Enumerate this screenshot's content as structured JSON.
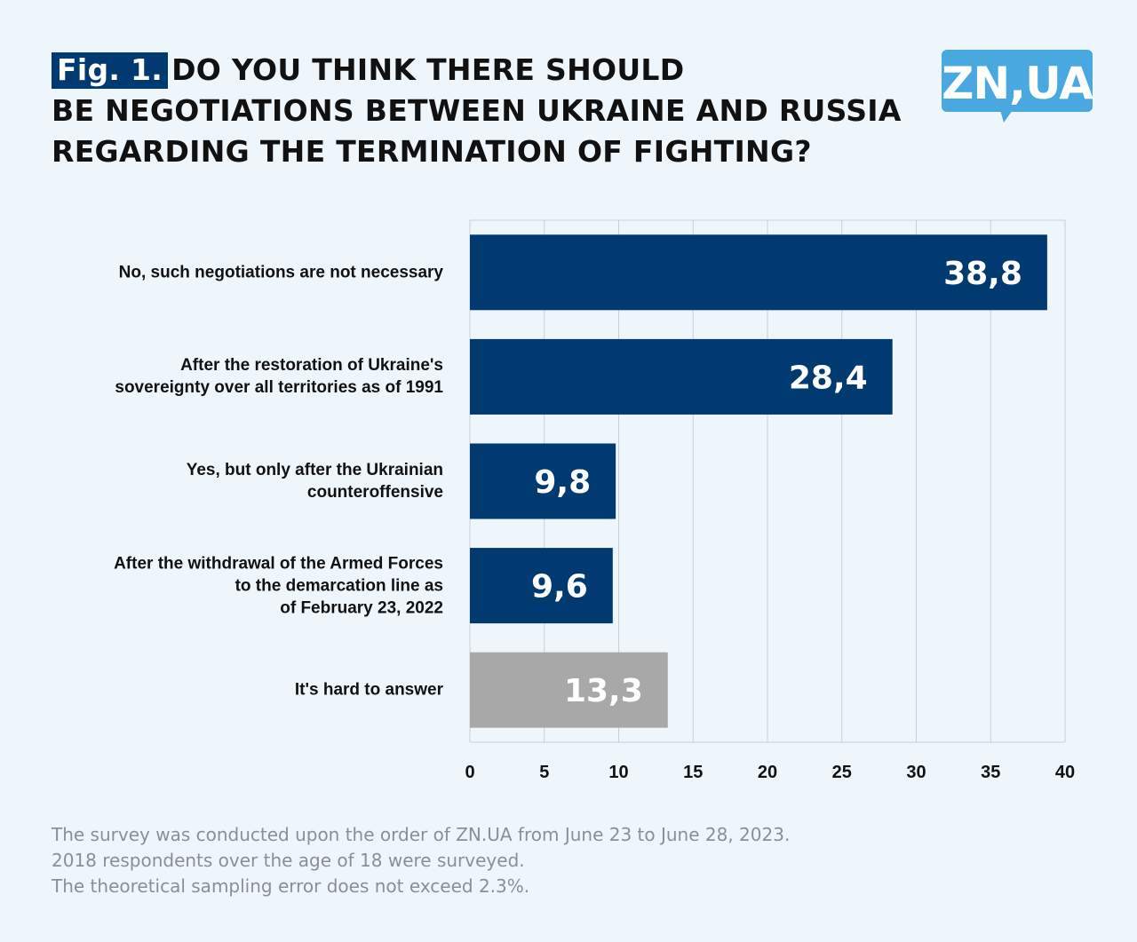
{
  "title": {
    "fig_label": "Fig. 1.",
    "line1": "DO YOU THINK THERE SHOULD",
    "line2": "BE NEGOTIATIONS BETWEEN UKRAINE AND RUSSIA",
    "line3": "REGARDING THE TERMINATION OF FIGHTING?"
  },
  "logo": {
    "text": "ZN,UA",
    "color": "#4aa8e0"
  },
  "chart_data": {
    "type": "bar",
    "orientation": "horizontal",
    "categories": [
      "No, such negotiations are not necessary",
      "After the restoration of Ukraine's sovereignty over all territories as of 1991",
      "Yes, but only after the Ukrainian counteroffensive",
      "After the withdrawal of the Armed Forces to the demarcation line as of February 23, 2022",
      "It's hard to answer"
    ],
    "category_lines": [
      [
        "No, such negotiations are not necessary"
      ],
      [
        "After the restoration of Ukraine's",
        "sovereignty over all territories as of 1991"
      ],
      [
        "Yes, but only after the Ukrainian",
        "counteroffensive"
      ],
      [
        "After the withdrawal of the Armed Forces",
        "to the demarcation line as",
        "of February 23, 2022"
      ],
      [
        "It's hard to answer"
      ]
    ],
    "values": [
      38.8,
      28.4,
      9.8,
      9.6,
      13.3
    ],
    "value_labels": [
      "38,8",
      "28,4",
      "9,8",
      "9,6",
      "13,3"
    ],
    "colors": [
      "#003a70",
      "#003a70",
      "#003a70",
      "#003a70",
      "#a8a8a8"
    ],
    "xlim": [
      0,
      40
    ],
    "xticks": [
      0,
      5,
      10,
      15,
      20,
      25,
      30,
      35,
      40
    ],
    "grid": true
  },
  "footnote": [
    "The survey was conducted upon the order of ZN.UA from June 23 to June 28, 2023.",
    "2018 respondents over the age of 18 were surveyed.",
    "The theoretical sampling error does not exceed 2.3%."
  ]
}
